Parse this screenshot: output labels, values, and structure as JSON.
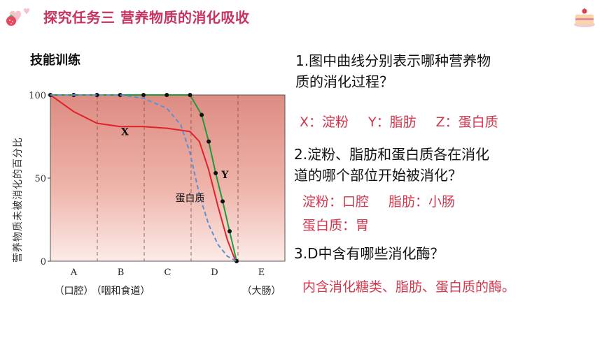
{
  "header": {
    "title": "探究任务三  营养物质的消化吸收"
  },
  "section_label": "技能训练",
  "questions": {
    "q1": {
      "line1": "1.图中曲线分别表示哪种营养物",
      "line2": "质的消化过程？"
    },
    "a1": [
      "X：淀粉",
      "Y：脂肪",
      "Z：蛋白质"
    ],
    "q2": {
      "line1": "2.淀粉、脂肪和蛋白质各在消化",
      "line2": "道的哪个部位开始被消化？"
    },
    "a2": {
      "line1": [
        "淀粉：口腔",
        "脂肪：小肠"
      ],
      "line2": "蛋白质：胃"
    },
    "q3": "3.D中含有哪些消化酶？",
    "a3": "内含消化糖类、脂肪、蛋白质的酶。"
  },
  "colors": {
    "title": "#c8335f",
    "answer": "#d2374e",
    "chart_bg_top": "#e2978c",
    "chart_bg_bottom": "#fbeae6"
  },
  "chart_data": {
    "type": "line",
    "ylabel": "营养物质未被消化的百分比",
    "ylim": [
      0,
      100
    ],
    "yticks": [
      0,
      50,
      100
    ],
    "regions": [
      {
        "letter": "A",
        "sub": "（口腔）"
      },
      {
        "letter": "B",
        "sub": "（咽和食道）"
      },
      {
        "letter": "C",
        "sub": ""
      },
      {
        "letter": "D",
        "sub": ""
      },
      {
        "letter": "E",
        "sub": "（大肠）"
      }
    ],
    "series": [
      {
        "name": "X",
        "color": "#e0222b",
        "style": "solid",
        "points": [
          [
            0,
            100
          ],
          [
            0.5,
            90
          ],
          [
            1,
            83
          ],
          [
            1.5,
            81
          ],
          [
            2,
            81
          ],
          [
            2.5,
            80
          ],
          [
            3,
            78
          ],
          [
            3.2,
            72
          ],
          [
            3.4,
            55
          ],
          [
            3.6,
            33
          ],
          [
            3.8,
            13
          ],
          [
            3.95,
            2
          ],
          [
            4,
            0
          ]
        ]
      },
      {
        "name": "Y",
        "color": "#1f9a3a",
        "style": "solid",
        "markers": true,
        "points": [
          [
            0,
            100
          ],
          [
            0.5,
            100
          ],
          [
            1,
            100
          ],
          [
            1.5,
            100
          ],
          [
            2,
            100
          ],
          [
            2.5,
            100
          ],
          [
            3,
            100
          ],
          [
            3.25,
            88
          ],
          [
            3.4,
            72
          ],
          [
            3.55,
            53
          ],
          [
            3.7,
            36
          ],
          [
            3.85,
            18
          ],
          [
            4,
            0
          ]
        ]
      },
      {
        "name": "蛋白质",
        "color": "#5b8fd6",
        "style": "dashed",
        "points": [
          [
            0,
            100
          ],
          [
            1,
            100
          ],
          [
            1.5,
            100
          ],
          [
            2,
            98
          ],
          [
            2.5,
            92
          ],
          [
            2.8,
            82
          ],
          [
            3,
            65
          ],
          [
            3.2,
            40
          ],
          [
            3.4,
            22
          ],
          [
            3.6,
            10
          ],
          [
            3.8,
            3
          ],
          [
            4,
            0
          ]
        ]
      }
    ],
    "labels": [
      {
        "text": "X",
        "x": 1.6,
        "y": 78
      },
      {
        "text": "Y",
        "x": 3.75,
        "y": 52
      },
      {
        "text": "蛋白质",
        "x": 3.0,
        "y": 38
      }
    ]
  }
}
